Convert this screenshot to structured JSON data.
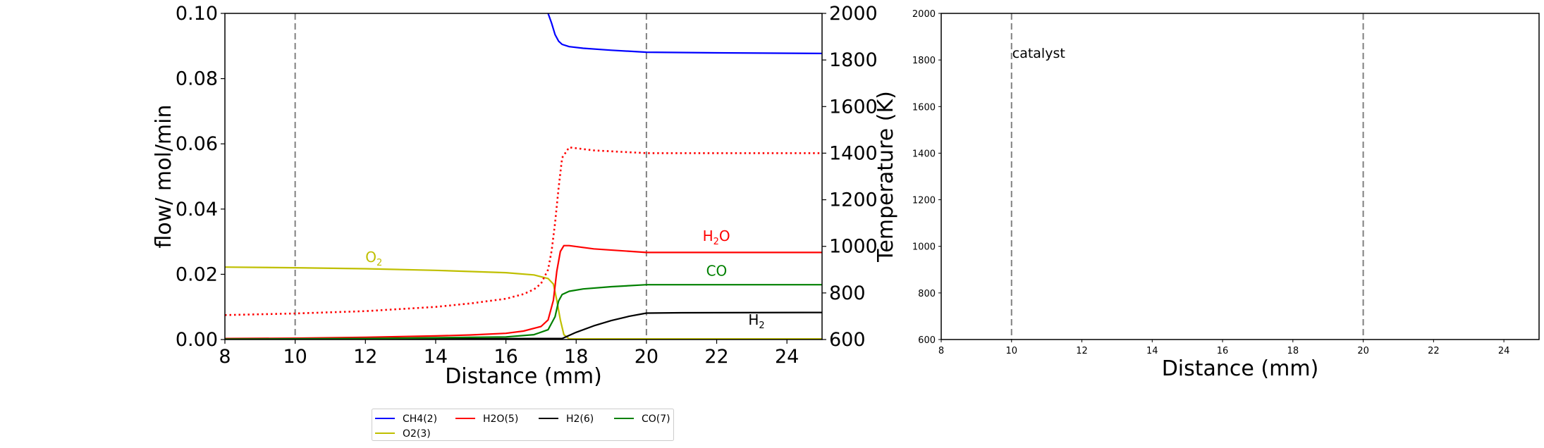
{
  "chart_data": [
    {
      "type": "line",
      "xlabel": "Distance (mm)",
      "ylabel": "flow/ mol/min",
      "y2label": "Temperature (K)",
      "xlim": [
        8,
        25
      ],
      "ylim": [
        0,
        0.1
      ],
      "y2lim": [
        600,
        2000
      ],
      "xticks": [
        "8",
        "10",
        "12",
        "14",
        "16",
        "18",
        "20",
        "22",
        "24"
      ],
      "yticks": [
        "0.00",
        "0.02",
        "0.04",
        "0.06",
        "0.08",
        "0.10"
      ],
      "y2ticks": [
        "600",
        "800",
        "1000",
        "1200",
        "1400",
        "1600",
        "1800",
        "2000"
      ],
      "vlines": [
        10,
        20
      ],
      "grid": false,
      "series": [
        {
          "name": "CH4(2)",
          "color": "#0000ff",
          "style": "solid",
          "x": [
            17.2,
            17.3,
            17.4,
            17.5,
            17.6,
            17.8,
            18.2,
            19,
            20,
            22,
            25
          ],
          "y": [
            0.1,
            0.097,
            0.0935,
            0.0915,
            0.0905,
            0.0898,
            0.0893,
            0.0887,
            0.0881,
            0.0879,
            0.0877
          ]
        },
        {
          "name": "O2(3)",
          "color": "#bfbf00",
          "style": "solid",
          "x": [
            8,
            10,
            12,
            14,
            16,
            16.8,
            17.2,
            17.35,
            17.45,
            17.55,
            17.65,
            17.8,
            25
          ],
          "y": [
            0.0222,
            0.022,
            0.0217,
            0.0212,
            0.0205,
            0.0198,
            0.0187,
            0.017,
            0.012,
            0.006,
            0.0015,
            0.0002,
            0.0002
          ]
        },
        {
          "name": "H2O(5)",
          "color": "#ff0000",
          "style": "solid",
          "x": [
            8,
            10,
            12,
            14,
            15,
            16,
            16.5,
            17,
            17.2,
            17.35,
            17.45,
            17.55,
            17.65,
            17.8,
            18.5,
            20,
            22,
            25
          ],
          "y": [
            0.0003,
            0.0004,
            0.0007,
            0.0011,
            0.0014,
            0.0019,
            0.0026,
            0.004,
            0.006,
            0.012,
            0.021,
            0.027,
            0.0288,
            0.0288,
            0.0278,
            0.0267,
            0.0267,
            0.0267
          ]
        },
        {
          "name": "H2(6)",
          "color": "#000000",
          "style": "solid",
          "x": [
            8,
            14,
            17,
            17.6,
            18,
            18.5,
            19,
            19.5,
            20,
            21,
            25
          ],
          "y": [
            0.0001,
            0.0002,
            0.0003,
            0.0003,
            0.0022,
            0.0042,
            0.0058,
            0.0071,
            0.0081,
            0.0082,
            0.0083
          ]
        },
        {
          "name": "CO(7)",
          "color": "#008000",
          "style": "solid",
          "x": [
            8,
            12,
            16,
            16.8,
            17.2,
            17.4,
            17.5,
            17.6,
            17.8,
            18.2,
            19,
            20,
            22,
            25
          ],
          "y": [
            0.0001,
            0.0003,
            0.0008,
            0.0015,
            0.003,
            0.007,
            0.0118,
            0.0138,
            0.0148,
            0.0155,
            0.0162,
            0.0168,
            0.0168,
            0.0168
          ]
        },
        {
          "name": "Temperature",
          "color": "#ff0000",
          "style": "dotted",
          "axis": "y2",
          "x": [
            8,
            10,
            12,
            14,
            15,
            16,
            16.5,
            16.8,
            17,
            17.2,
            17.3,
            17.4,
            17.5,
            17.6,
            17.8,
            18.5,
            20,
            22,
            25
          ],
          "y": [
            705,
            712,
            722,
            740,
            755,
            775,
            795,
            815,
            840,
            900,
            980,
            1100,
            1250,
            1380,
            1425,
            1412,
            1400,
            1400,
            1400
          ]
        }
      ],
      "annotations": [
        {
          "main": "O",
          "sub": "2",
          "x": 12,
          "y": 0.0238,
          "color": "#bfbf00"
        },
        {
          "main": "H",
          "sub": "2",
          "tail": "O",
          "x": 21.6,
          "y": 0.0302,
          "color": "#ff0000"
        },
        {
          "main": "CO",
          "sub": "",
          "x": 21.7,
          "y": 0.0195,
          "color": "#008000"
        },
        {
          "main": "H",
          "sub": "2",
          "x": 22.9,
          "y": 0.0045,
          "color": "#000000"
        }
      ],
      "legend": {
        "placement": "below",
        "entries": [
          {
            "label": "CH4(2)",
            "color": "#0000ff"
          },
          {
            "label": "H2O(5)",
            "color": "#ff0000"
          },
          {
            "label": "H2(6)",
            "color": "#000000"
          },
          {
            "label": "CO(7)",
            "color": "#008000"
          },
          {
            "label": "O2(3)",
            "color": "#bfbf00"
          }
        ]
      }
    },
    {
      "type": "line",
      "xlabel": "Distance (mm)",
      "xlim": [
        8,
        25
      ],
      "ylim": [
        600,
        2000
      ],
      "xticks": [
        "8",
        "10",
        "12",
        "14",
        "16",
        "18",
        "20",
        "22",
        "24"
      ],
      "yticks": [
        "600",
        "800",
        "1000",
        "1200",
        "1400",
        "1600",
        "1800",
        "2000"
      ],
      "vlines": [
        10,
        20
      ],
      "grid": false,
      "series": [],
      "annotations": [
        {
          "text": "catalyst",
          "x": 10,
          "y": 1830
        }
      ]
    }
  ]
}
